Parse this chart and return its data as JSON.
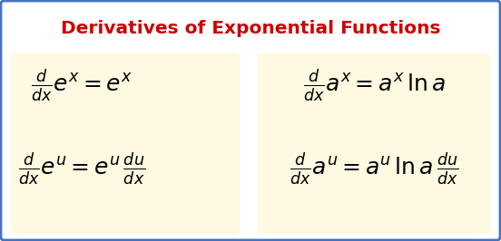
{
  "title": "Derivatives of Exponential Functions",
  "title_color": "#cc0000",
  "title_fontsize": 14.5,
  "background_color": "#ffffff",
  "box_color": "#fef9e0",
  "border_color": "#4472c4",
  "formula_fontsize": 13,
  "fig_width": 5.52,
  "fig_height": 2.66,
  "dpi": 100,
  "formula_color": "#000000"
}
